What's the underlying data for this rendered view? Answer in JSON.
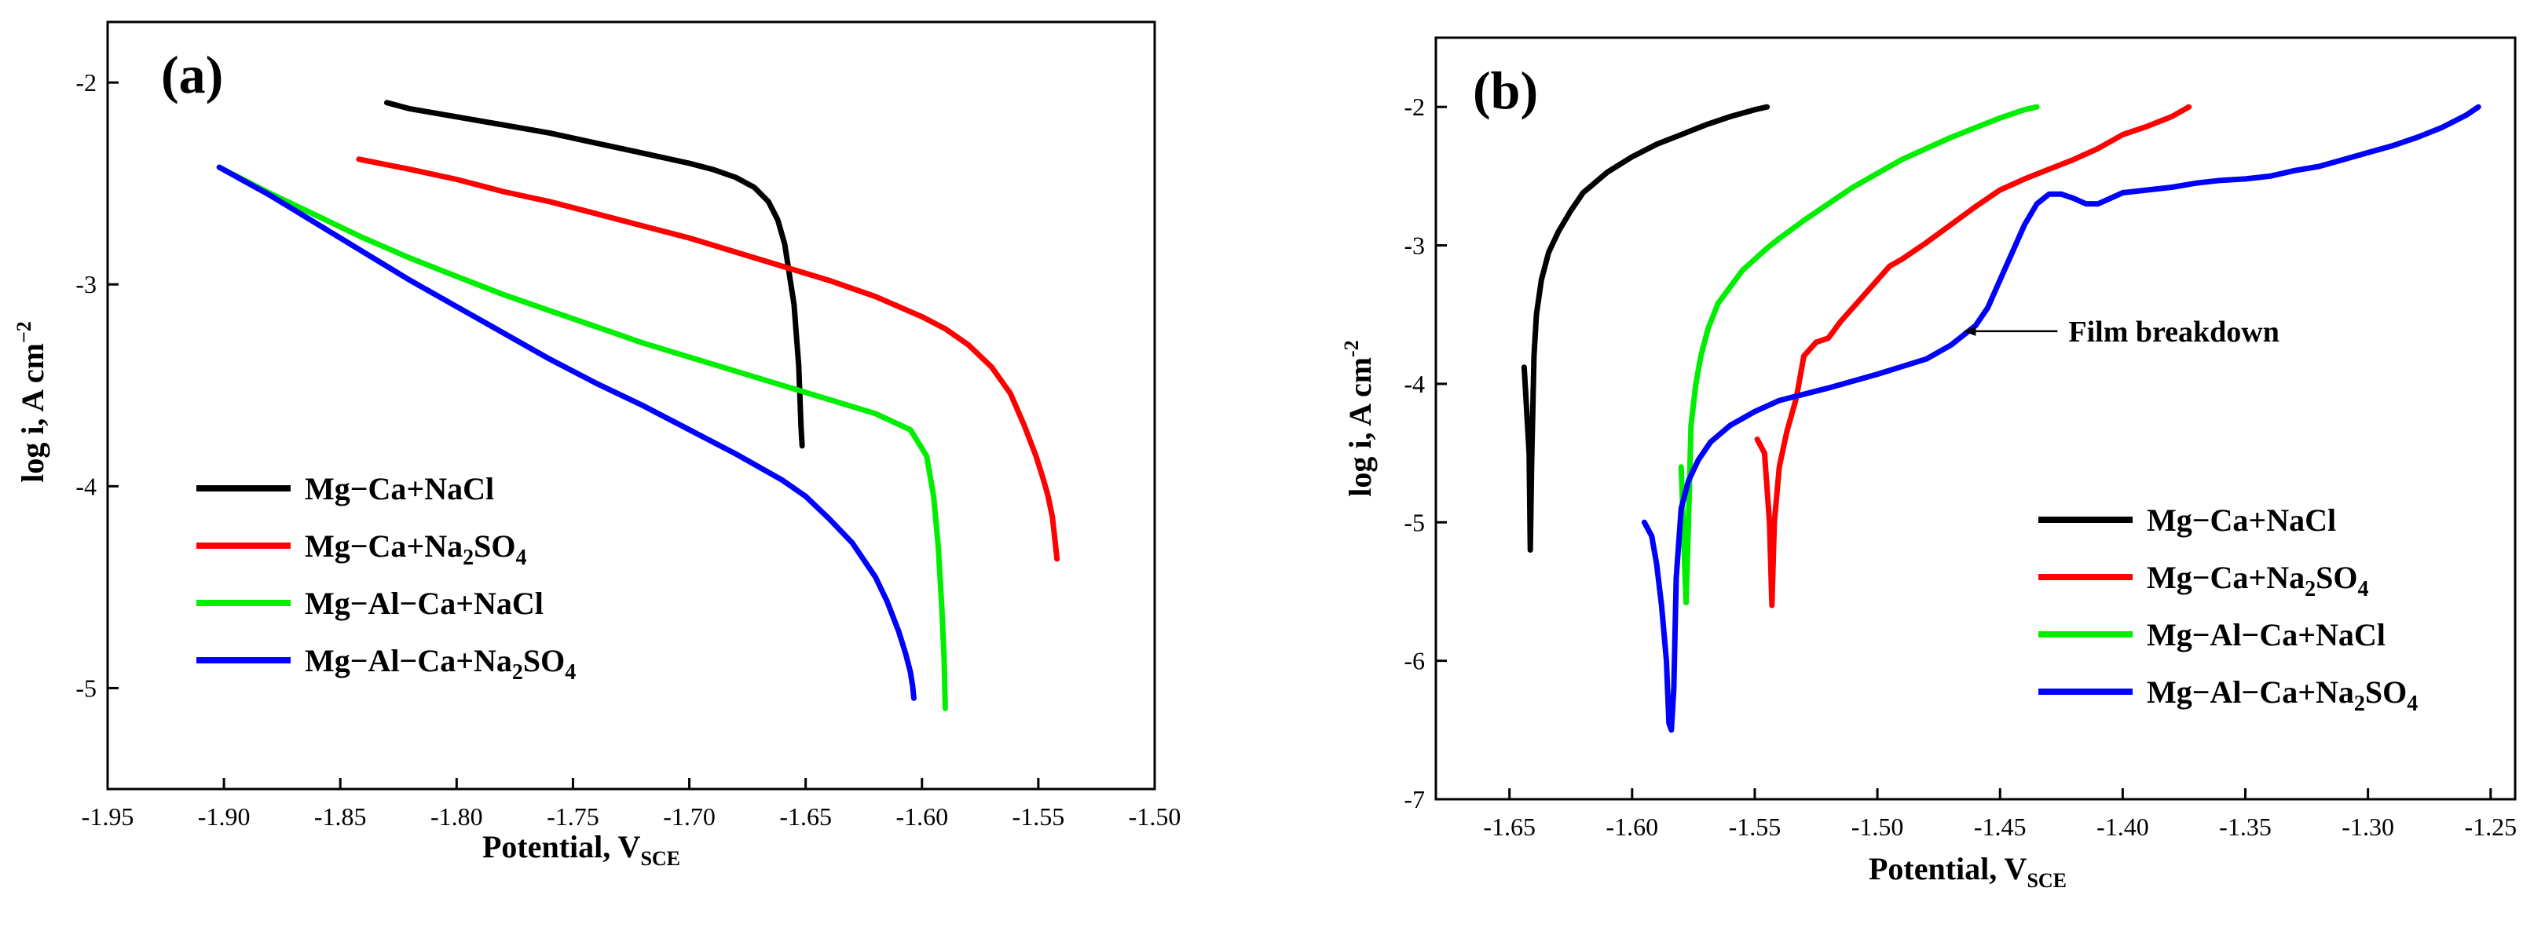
{
  "chart_data": [
    {
      "type": "line",
      "panel_label": "(a)",
      "xlabel": "Potential, V",
      "xlabel_sub": "SCE",
      "ylabel": "log i, A cm",
      "ylabel_sup": "−2",
      "xlim": [
        -1.95,
        -1.5
      ],
      "ylim": [
        -5.5,
        -1.7
      ],
      "x_ticks": [
        -1.95,
        -1.9,
        -1.85,
        -1.8,
        -1.75,
        -1.7,
        -1.65,
        -1.6,
        -1.55,
        -1.5
      ],
      "x_tick_labels": [
        "-1.95",
        "-1.90",
        "-1.85",
        "-1.80",
        "-1.75",
        "-1.70",
        "-1.65",
        "-1.60",
        "-1.55",
        "-1.50"
      ],
      "y_ticks": [
        -2,
        -3,
        -4,
        -5
      ],
      "y_tick_labels": [
        "-2",
        "-3",
        "-4",
        "-5"
      ],
      "legend_position": "lower-left",
      "series": [
        {
          "name": "Mg−Ca+NaCl",
          "color": "#000000",
          "x": [
            -1.83,
            -1.82,
            -1.8,
            -1.78,
            -1.76,
            -1.74,
            -1.72,
            -1.7,
            -1.69,
            -1.68,
            -1.672,
            -1.666,
            -1.662,
            -1.659,
            -1.657,
            -1.655,
            -1.654,
            -1.653,
            -1.6525,
            -1.652,
            -1.6515
          ],
          "y": [
            -2.1,
            -2.13,
            -2.17,
            -2.21,
            -2.25,
            -2.3,
            -2.35,
            -2.4,
            -2.43,
            -2.47,
            -2.52,
            -2.59,
            -2.68,
            -2.8,
            -2.95,
            -3.1,
            -3.25,
            -3.4,
            -3.55,
            -3.7,
            -3.8
          ]
        },
        {
          "name": "Mg−Ca+Na",
          "name_sub": "2",
          "name_rest": "SO",
          "name_sub2": "4",
          "color": "#ff0000",
          "x": [
            -1.842,
            -1.82,
            -1.8,
            -1.78,
            -1.76,
            -1.74,
            -1.72,
            -1.7,
            -1.68,
            -1.66,
            -1.64,
            -1.62,
            -1.6,
            -1.59,
            -1.58,
            -1.57,
            -1.562,
            -1.556,
            -1.551,
            -1.548,
            -1.546,
            -1.544,
            -1.543,
            -1.542
          ],
          "y": [
            -2.38,
            -2.43,
            -2.48,
            -2.54,
            -2.59,
            -2.65,
            -2.71,
            -2.77,
            -2.84,
            -2.91,
            -2.98,
            -3.06,
            -3.16,
            -3.22,
            -3.3,
            -3.41,
            -3.54,
            -3.7,
            -3.85,
            -3.96,
            -4.04,
            -4.15,
            -4.25,
            -4.36
          ]
        },
        {
          "name": "Mg−Al−Ca+NaCl",
          "color": "#00ee00",
          "x": [
            -1.902,
            -1.88,
            -1.86,
            -1.84,
            -1.82,
            -1.8,
            -1.78,
            -1.76,
            -1.74,
            -1.72,
            -1.7,
            -1.68,
            -1.66,
            -1.64,
            -1.62,
            -1.605,
            -1.598,
            -1.595,
            -1.593,
            -1.5915,
            -1.5905,
            -1.59
          ],
          "y": [
            -2.42,
            -2.55,
            -2.66,
            -2.77,
            -2.87,
            -2.96,
            -3.05,
            -3.13,
            -3.21,
            -3.29,
            -3.36,
            -3.43,
            -3.5,
            -3.57,
            -3.64,
            -3.72,
            -3.85,
            -4.05,
            -4.3,
            -4.6,
            -4.85,
            -5.1
          ]
        },
        {
          "name": "Mg−Al−Ca+Na",
          "name_sub": "2",
          "name_rest": "SO",
          "name_sub2": "4",
          "color": "#0000ff",
          "x": [
            -1.902,
            -1.88,
            -1.86,
            -1.84,
            -1.82,
            -1.8,
            -1.78,
            -1.76,
            -1.74,
            -1.72,
            -1.7,
            -1.68,
            -1.66,
            -1.65,
            -1.64,
            -1.63,
            -1.62,
            -1.615,
            -1.61,
            -1.607,
            -1.605,
            -1.604,
            -1.6035
          ],
          "y": [
            -2.42,
            -2.56,
            -2.7,
            -2.84,
            -2.98,
            -3.11,
            -3.24,
            -3.37,
            -3.49,
            -3.6,
            -3.72,
            -3.84,
            -3.97,
            -4.05,
            -4.16,
            -4.28,
            -4.45,
            -4.57,
            -4.72,
            -4.83,
            -4.92,
            -4.99,
            -5.05
          ]
        }
      ]
    },
    {
      "type": "line",
      "panel_label": "(b)",
      "xlabel": "Potential, V",
      "xlabel_sub": "SCE",
      "ylabel": "log i, A cm",
      "ylabel_sup": "-2",
      "xlim": [
        -1.68,
        -1.24
      ],
      "ylim": [
        -7.0,
        -1.5
      ],
      "x_ticks": [
        -1.65,
        -1.6,
        -1.55,
        -1.5,
        -1.45,
        -1.4,
        -1.35,
        -1.3,
        -1.25
      ],
      "x_tick_labels": [
        "-1.65",
        "-1.60",
        "-1.55",
        "-1.50",
        "-1.45",
        "-1.40",
        "-1.35",
        "-1.30",
        "-1.25"
      ],
      "y_ticks": [
        -2,
        -3,
        -4,
        -5,
        -6,
        -7
      ],
      "y_tick_labels": [
        "-2",
        "-3",
        "-4",
        "-5",
        "-6",
        "-7"
      ],
      "legend_position": "lower-right",
      "annotation": {
        "text": "Film breakdown",
        "x": -1.465,
        "y": -3.62
      },
      "series": [
        {
          "name": "Mg−Ca+NaCl",
          "color": "#000000",
          "x": [
            -1.644,
            -1.642,
            -1.6415,
            -1.641,
            -1.64,
            -1.639,
            -1.637,
            -1.634,
            -1.63,
            -1.625,
            -1.62,
            -1.61,
            -1.6,
            -1.59,
            -1.58,
            -1.57,
            -1.56,
            -1.55,
            -1.545
          ],
          "y": [
            -3.88,
            -4.5,
            -5.2,
            -4.6,
            -3.8,
            -3.5,
            -3.25,
            -3.05,
            -2.9,
            -2.75,
            -2.62,
            -2.47,
            -2.36,
            -2.27,
            -2.2,
            -2.13,
            -2.07,
            -2.02,
            -2.0
          ]
        },
        {
          "name": "Mg−Ca+Na",
          "name_sub": "2",
          "name_rest": "SO",
          "name_sub2": "4",
          "color": "#ff0000",
          "x": [
            -1.549,
            -1.546,
            -1.544,
            -1.543,
            -1.542,
            -1.54,
            -1.537,
            -1.533,
            -1.53,
            -1.525,
            -1.52,
            -1.515,
            -1.51,
            -1.505,
            -1.5,
            -1.495,
            -1.49,
            -1.48,
            -1.47,
            -1.46,
            -1.45,
            -1.44,
            -1.43,
            -1.42,
            -1.41,
            -1.4,
            -1.39,
            -1.38,
            -1.373
          ],
          "y": [
            -4.4,
            -4.5,
            -5.0,
            -5.6,
            -5.0,
            -4.6,
            -4.35,
            -4.1,
            -3.8,
            -3.7,
            -3.67,
            -3.55,
            -3.45,
            -3.35,
            -3.25,
            -3.15,
            -3.1,
            -2.98,
            -2.85,
            -2.72,
            -2.6,
            -2.52,
            -2.45,
            -2.38,
            -2.3,
            -2.2,
            -2.14,
            -2.07,
            -2.0
          ]
        },
        {
          "name": "Mg−Al−Ca+NaCl",
          "color": "#00ee00",
          "x": [
            -1.58,
            -1.578,
            -1.577,
            -1.576,
            -1.574,
            -1.572,
            -1.569,
            -1.565,
            -1.56,
            -1.555,
            -1.55,
            -1.545,
            -1.54,
            -1.53,
            -1.52,
            -1.51,
            -1.5,
            -1.49,
            -1.48,
            -1.47,
            -1.46,
            -1.45,
            -1.44,
            -1.435
          ],
          "y": [
            -4.6,
            -5.58,
            -5.0,
            -4.3,
            -4.0,
            -3.8,
            -3.6,
            -3.42,
            -3.3,
            -3.18,
            -3.1,
            -3.02,
            -2.95,
            -2.82,
            -2.7,
            -2.58,
            -2.48,
            -2.38,
            -2.3,
            -2.22,
            -2.15,
            -2.08,
            -2.02,
            -2.0
          ]
        },
        {
          "name": "Mg−Al−Ca+Na",
          "name_sub": "2",
          "name_rest": "SO",
          "name_sub2": "4",
          "color": "#0000ff",
          "x": [
            -1.595,
            -1.592,
            -1.59,
            -1.588,
            -1.586,
            -1.585,
            -1.584,
            -1.583,
            -1.582,
            -1.58,
            -1.577,
            -1.573,
            -1.568,
            -1.56,
            -1.55,
            -1.54,
            -1.52,
            -1.5,
            -1.48,
            -1.47,
            -1.46,
            -1.455,
            -1.45,
            -1.445,
            -1.44,
            -1.435,
            -1.43,
            -1.425,
            -1.42,
            -1.415,
            -1.41,
            -1.4,
            -1.39,
            -1.38,
            -1.37,
            -1.36,
            -1.35,
            -1.34,
            -1.33,
            -1.32,
            -1.31,
            -1.3,
            -1.29,
            -1.28,
            -1.27,
            -1.26,
            -1.255
          ],
          "y": [
            -5.0,
            -5.1,
            -5.3,
            -5.6,
            -6.0,
            -6.45,
            -6.5,
            -6.2,
            -5.4,
            -4.9,
            -4.7,
            -4.55,
            -4.42,
            -4.3,
            -4.2,
            -4.12,
            -4.03,
            -3.93,
            -3.82,
            -3.72,
            -3.58,
            -3.45,
            -3.25,
            -3.05,
            -2.85,
            -2.7,
            -2.63,
            -2.63,
            -2.66,
            -2.7,
            -2.7,
            -2.62,
            -2.6,
            -2.58,
            -2.55,
            -2.53,
            -2.52,
            -2.5,
            -2.46,
            -2.43,
            -2.38,
            -2.33,
            -2.28,
            -2.22,
            -2.15,
            -2.06,
            -2.0
          ]
        }
      ]
    }
  ]
}
